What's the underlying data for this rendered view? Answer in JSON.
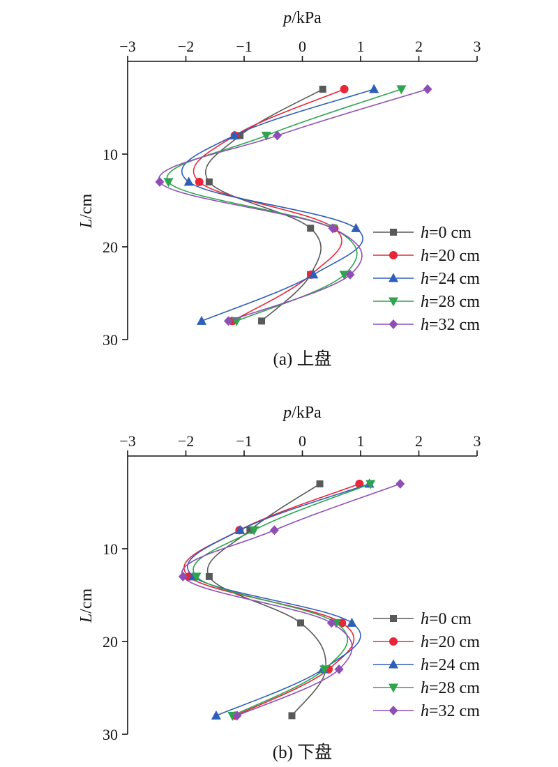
{
  "colors": {
    "h0": "#595959",
    "h20": "#e8263a",
    "h24": "#2d5fb8",
    "h28": "#2ea44f",
    "h32": "#8e4fb5"
  },
  "chart_data": [
    {
      "type": "line",
      "caption": "(a) 上盘",
      "x_axis": {
        "label_var": "p",
        "label_unit": "/kPa",
        "range": [
          -3,
          3
        ],
        "ticks": [
          -3,
          -2,
          -1,
          0,
          1,
          2,
          3
        ],
        "position": "top"
      },
      "y_axis": {
        "label_var": "L",
        "label_unit": "/cm",
        "range": [
          0,
          30
        ],
        "ticks": [
          10,
          20,
          30
        ],
        "inverted": true
      },
      "legend": {
        "placement": "right"
      },
      "series": [
        {
          "name": "h=0 cm",
          "var": "h",
          "rest": "=0 cm",
          "color_key": "h0",
          "marker": "square",
          "points": [
            [
              0.35,
              3
            ],
            [
              -1.07,
              8
            ],
            [
              -1.6,
              13
            ],
            [
              0.14,
              18
            ],
            [
              0.14,
              23
            ],
            [
              -0.7,
              28
            ]
          ]
        },
        {
          "name": "h=20 cm",
          "var": "h",
          "rest": "=20 cm",
          "color_key": "h20",
          "marker": "circle",
          "points": [
            [
              0.72,
              3
            ],
            [
              -1.16,
              8
            ],
            [
              -1.77,
              13
            ],
            [
              0.55,
              18
            ],
            [
              0.15,
              23
            ],
            [
              -1.2,
              28
            ]
          ]
        },
        {
          "name": "h=24 cm",
          "var": "h",
          "rest": "=24 cm",
          "color_key": "h24",
          "marker": "triangle-up",
          "points": [
            [
              1.23,
              3
            ],
            [
              -1.17,
              8
            ],
            [
              -1.95,
              13
            ],
            [
              0.92,
              18
            ],
            [
              0.19,
              23
            ],
            [
              -1.73,
              28
            ]
          ]
        },
        {
          "name": "h=28 cm",
          "var": "h",
          "rest": "=28 cm",
          "color_key": "h28",
          "marker": "triangle-down",
          "points": [
            [
              1.7,
              3
            ],
            [
              -0.62,
              8
            ],
            [
              -2.3,
              13
            ],
            [
              0.52,
              18
            ],
            [
              0.72,
              23
            ],
            [
              -1.13,
              28
            ]
          ]
        },
        {
          "name": "h=32 cm",
          "var": "h",
          "rest": "=32 cm",
          "color_key": "h32",
          "marker": "diamond",
          "points": [
            [
              2.15,
              3
            ],
            [
              -0.43,
              8
            ],
            [
              -2.45,
              13
            ],
            [
              0.52,
              18
            ],
            [
              0.82,
              23
            ],
            [
              -1.27,
              28
            ]
          ]
        }
      ]
    },
    {
      "type": "line",
      "caption": "(b) 下盘",
      "x_axis": {
        "label_var": "p",
        "label_unit": "/kPa",
        "range": [
          -3,
          3
        ],
        "ticks": [
          -3,
          -2,
          -1,
          0,
          1,
          2,
          3
        ],
        "position": "top"
      },
      "y_axis": {
        "label_var": "L",
        "label_unit": "/cm",
        "range": [
          0,
          30
        ],
        "ticks": [
          10,
          20,
          30
        ],
        "inverted": true
      },
      "legend": {
        "placement": "right"
      },
      "series": [
        {
          "name": "h=0 cm",
          "var": "h",
          "rest": "=0 cm",
          "color_key": "h0",
          "marker": "square",
          "points": [
            [
              0.3,
              3
            ],
            [
              -0.9,
              8
            ],
            [
              -1.6,
              13
            ],
            [
              -0.03,
              18
            ],
            [
              0.4,
              23
            ],
            [
              -0.18,
              28
            ]
          ]
        },
        {
          "name": "h=20 cm",
          "var": "h",
          "rest": "=20 cm",
          "color_key": "h20",
          "marker": "circle",
          "points": [
            [
              0.98,
              3
            ],
            [
              -1.08,
              8
            ],
            [
              -1.95,
              13
            ],
            [
              0.68,
              18
            ],
            [
              0.45,
              23
            ],
            [
              -1.15,
              28
            ]
          ]
        },
        {
          "name": "h=24 cm",
          "var": "h",
          "rest": "=24 cm",
          "color_key": "h24",
          "marker": "triangle-up",
          "points": [
            [
              1.15,
              3
            ],
            [
              -1.07,
              8
            ],
            [
              -1.87,
              13
            ],
            [
              0.85,
              18
            ],
            [
              0.35,
              23
            ],
            [
              -1.48,
              28
            ]
          ]
        },
        {
          "name": "h=28 cm",
          "var": "h",
          "rest": "=28 cm",
          "color_key": "h28",
          "marker": "triangle-down",
          "points": [
            [
              1.17,
              3
            ],
            [
              -0.83,
              8
            ],
            [
              -1.82,
              13
            ],
            [
              0.58,
              18
            ],
            [
              0.38,
              23
            ],
            [
              -1.2,
              28
            ]
          ]
        },
        {
          "name": "h=32 cm",
          "var": "h",
          "rest": "=32 cm",
          "color_key": "h32",
          "marker": "diamond",
          "points": [
            [
              1.68,
              3
            ],
            [
              -0.48,
              8
            ],
            [
              -2.05,
              13
            ],
            [
              0.5,
              18
            ],
            [
              0.63,
              23
            ],
            [
              -1.12,
              28
            ]
          ]
        }
      ]
    }
  ]
}
